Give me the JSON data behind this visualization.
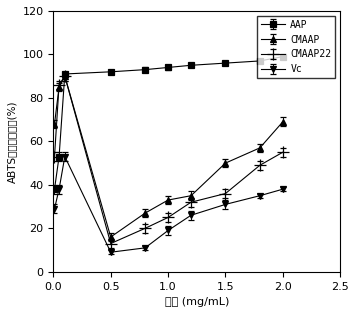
{
  "title": "",
  "xlabel": "浓度 (mg/mL)",
  "ylabel": "ABTS自由基清除率(%)",
  "xlim": [
    0,
    2.5
  ],
  "ylim": [
    0,
    120
  ],
  "yticks": [
    0,
    20,
    40,
    60,
    80,
    100,
    120
  ],
  "xticks": [
    0.0,
    0.5,
    1.0,
    1.5,
    2.0,
    2.5
  ],
  "series": [
    {
      "label": "AAP",
      "marker": "s",
      "color": "#000000",
      "x": [
        0.01,
        0.05,
        0.1,
        0.5,
        0.8,
        1.0,
        1.2,
        1.5,
        1.8,
        2.0
      ],
      "y": [
        38,
        53,
        91,
        92,
        93,
        94,
        95,
        96,
        97,
        99
      ],
      "yerr": [
        2,
        2,
        1,
        1,
        1,
        1,
        1,
        1,
        1,
        1
      ]
    },
    {
      "label": "CMAAP",
      "marker": "^",
      "color": "#000000",
      "x": [
        0.01,
        0.05,
        0.1,
        0.5,
        0.8,
        1.0,
        1.2,
        1.5,
        1.8,
        2.0
      ],
      "y": [
        68,
        85,
        90,
        16,
        27,
        33,
        35,
        50,
        57,
        69
      ],
      "yerr": [
        2,
        2,
        2,
        2,
        2,
        2,
        2,
        2,
        2,
        2
      ]
    },
    {
      "label": "CMAAP22",
      "marker": "+",
      "color": "#000000",
      "x": [
        0.01,
        0.05,
        0.1,
        0.5,
        0.8,
        1.0,
        1.2,
        1.5,
        1.8,
        2.0
      ],
      "y": [
        53,
        86,
        90,
        13,
        20,
        25,
        32,
        36,
        49,
        55
      ],
      "yerr": [
        2,
        2,
        2,
        2,
        2,
        2,
        2,
        2,
        2,
        2
      ]
    },
    {
      "label": "Vc",
      "marker": "v",
      "color": "#000000",
      "x": [
        0.01,
        0.05,
        0.1,
        0.5,
        0.8,
        1.0,
        1.2,
        1.5,
        1.8,
        2.0
      ],
      "y": [
        29,
        38,
        53,
        9,
        11,
        19,
        26,
        31,
        35,
        38
      ],
      "yerr": [
        2,
        2,
        2,
        1,
        1,
        2,
        2,
        2,
        1,
        1
      ]
    }
  ]
}
